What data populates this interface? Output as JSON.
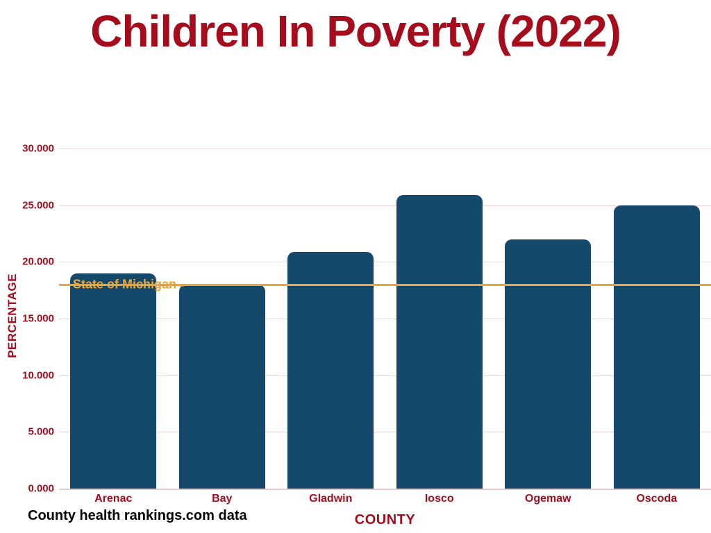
{
  "chart_data": {
    "type": "bar",
    "title": "Children In Poverty (2022)",
    "xlabel": "COUNTY",
    "ylabel": "PERCENTAGE",
    "categories": [
      "Arenac",
      "Bay",
      "Gladwin",
      "Iosco",
      "Ogemaw",
      "Oscoda"
    ],
    "values": [
      19.0,
      18.0,
      20.9,
      25.9,
      22.0,
      25.0
    ],
    "ylim": [
      0,
      30
    ],
    "yticks": [
      {
        "value": 0,
        "label": "0.000"
      },
      {
        "value": 5,
        "label": "5.000"
      },
      {
        "value": 10,
        "label": "10.000"
      },
      {
        "value": 15,
        "label": "15.000"
      },
      {
        "value": 20,
        "label": "20.000"
      },
      {
        "value": 25,
        "label": "25.000"
      },
      {
        "value": 30,
        "label": "30.000"
      }
    ],
    "grid": true,
    "legend": "none",
    "reference_line": {
      "label": "State of Michigan",
      "value": 18.0
    },
    "footnote": "County health rankings.com data",
    "colors": {
      "bar": "#15496b",
      "accent_red": "#a50d1d",
      "reference_gold": "#eaa63c",
      "gridline": "#f0d4d4",
      "background": "#ffffff"
    }
  }
}
